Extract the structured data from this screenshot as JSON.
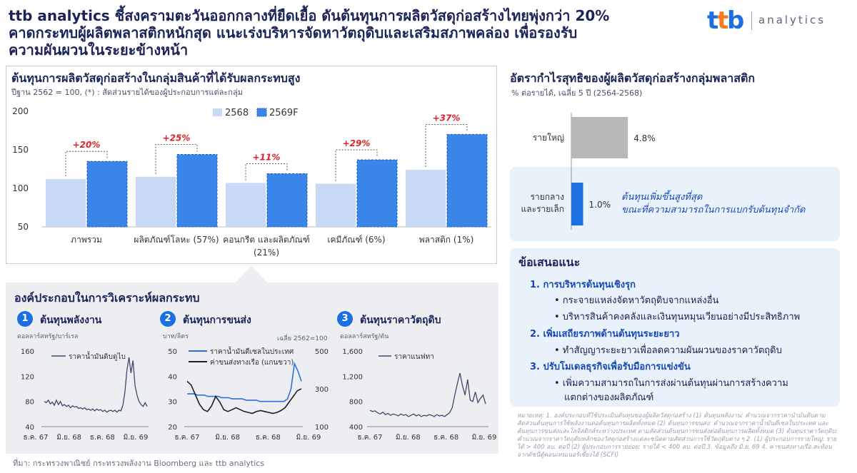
{
  "header": {
    "line1": "ttb analytics ชี้สงครามตะวันออกกลางที่ยืดเยื้อ ดันต้นทุนการผลิตวัสดุก่อสร้างไทยพุ่งกว่า 20%",
    "line2": "คาดกระทบผู้ผลิตพลาสติกหนักสุด แนะเร่งบริหารจัดหาวัตถุดิบและเสริมสภาพคล่อง เพื่อรองรับ",
    "line3": "ความผันผวนในระยะข้างหน้า"
  },
  "logo": {
    "brand": "ttb",
    "text": "analytics"
  },
  "colors": {
    "bar2568": "#c8d9f6",
    "bar2569": "#3a86e8",
    "accent": "#1b6fe0",
    "red": "#e0202a",
    "gray": "#b8b8b8"
  },
  "cost_chart": {
    "title": "ต้นทุนการผลิตวัสดุก่อสร้างในกลุ่มสินค้าที่ได้รับผลกระทบสูง",
    "subtitle": "ปีฐาน 2562 = 100, (*) : สัดส่วนรายได้ของผู้ประกอบการแต่ละกลุ่ม",
    "legend": [
      "2568",
      "2569F"
    ]
  },
  "profit_chart": {
    "title": "อัตรากำไรสุทธิของผู้ผลิตวัสดุก่อสร้างกลุ่มพลาสติก",
    "subtitle": "% ต่อรายได้, เฉลี่ย 5 ปี (2564-2568)",
    "label_large": "รายใหญ่",
    "label_small_1": "รายกลาง",
    "label_small_2": "และรายเล็ก",
    "callout_1": "ต้นทุนเพิ่มขึ้นสูงที่สุด",
    "callout_2": "ขณะที่ความสามารถในการแบกรับต้นทุนจำกัด"
  },
  "components": {
    "title": "องค์ประกอบในการวิเคราะห์ผลกระทบ",
    "c1": {
      "num": "1",
      "title": "ต้นทุนพลังงาน",
      "unit": "ดอลลาร์สหรัฐ/บาร์เรล",
      "legend": "ราคาน้ำมันดิบดูไบ"
    },
    "c2": {
      "num": "2",
      "title": "ต้นทุนการขนส่ง",
      "unit": "บาท/ลิตร",
      "unit_right": "เฉลี่ย 2562=100",
      "legend_1": "ราคาน้ำมันดีเซลในประเทศ",
      "legend_2": "ค่าขนส่งทางเรือ (แกนขวา)"
    },
    "c3": {
      "num": "3",
      "title": "ต้นทุนราคาวัตถุดิบ",
      "unit": "ดอลลาร์สหรัฐ/ตัน",
      "legend": "ราคาแนฟทา"
    }
  },
  "recommendations": {
    "title": "ข้อเสนอแนะ",
    "h1": "1.  การบริหารต้นทุนเชิงรุก",
    "b1a": "•  กระจายแหล่งจัดหาวัตถุดิบจากแหล่งอื่น",
    "b1b": "•  บริหารสินค้าคงคลังและเงินทุนหมุนเวียนอย่างมีประสิทธิภาพ",
    "h2": "2.  เพิ่มเสถียรภาพด้านต้นทุนระยะยาว",
    "b2a": "•  ทำสัญญาระยะยาวเพื่อลดความผันผวนของราคาวัตถุดิบ",
    "h3": "3.  ปรับโมเดลธุรกิจเพื่อรับมือการแข่งขัน",
    "b3a": "•  เพิ่มความสามารถในการส่งผ่านต้นทุนผ่านการสร้างความ",
    "b3b": "แตกต่างของผลิตภัณฑ์"
  },
  "footnote": "หมายเหตุ: 1. องค์ประกอบที่ใช้ประเมินต้นทุนของผู้ผลิตวัสดุก่อสร้าง (1) ต้นทุนพลังงาน: คำนวณจากราคาน้ำมันดิบตามสัดส่วนต้นทุนการใช้พลังงานต่อต้นทุนการผลิตทั้งหมด (2) ต้นทุนการขนส่ง: คำนวณจากราคาน้ำมันดีเซลในประเทศ และต้นทุนการขนส่งและโลจิสติกส์ระหว่างประเทศ ตามสัดส่วนต้นทุนการขนส่งต่อต้นทุนการผลิตทั้งหมด (3) ต้นทุนราคาวัตถุดิบ: คำนวณจากราคาวัตถุดิบหลักของวัสดุก่อสร้างแต่ละชนิดตามสัดส่วนการใช้วัตถุดิบต่าง ๆ 2. (1) ผู้ประกอบการรายใหญ่: รายได้ > 400 ลบ. ต่อปี (2) ผู้ประกอบการรายย่อย: รายได้ < 400 ลบ. ต่อปี 3. ข้อมูลถึง มิ.ย. 69 4. ค่าขนส่งทางเรือ สะท้อนจากดัชนีตู้คอนเทนเนอร์เซี่ยงไฮ้ (SCFI)",
  "source": "ที่มา: กระทรวงพาณิชย์ กระทรวงพลังงาน Bloomberg และ ttb analytics",
  "chart_data": [
    {
      "type": "bar",
      "title": "ต้นทุนการผลิตวัสดุก่อสร้างในกลุ่มสินค้าที่ได้รับผลกระทบสูง",
      "categories": [
        "ภาพรวม",
        "ผลิตภัณฑ์โลหะ (57%)",
        "คอนกรีต และผลิตภัณฑ์",
        "เคมีภัณฑ์ (6%)",
        "พลาสติก (1%)"
      ],
      "category_line2": [
        "",
        "",
        "(21%)",
        "",
        ""
      ],
      "series": [
        {
          "name": "2568",
          "values": [
            112,
            115,
            107,
            106,
            124
          ]
        },
        {
          "name": "2569F",
          "values": [
            135,
            144,
            119,
            137,
            170
          ]
        }
      ],
      "changes": [
        "+20%",
        "+25%",
        "+11%",
        "+29%",
        "+37%"
      ],
      "ylim": [
        50,
        200
      ],
      "yticks": [
        "50",
        "100",
        "150",
        "200"
      ]
    },
    {
      "type": "bar",
      "title": "อัตรากำไรสุทธิของผู้ผลิตวัสดุก่อสร้างกลุ่มพลาสติก",
      "categories": [
        "รายใหญ่",
        "รายกลาง และรายเล็ก"
      ],
      "values": [
        4.8,
        1.0
      ],
      "value_labels": [
        "4.8%",
        "1.0%"
      ],
      "xlim": [
        0,
        6
      ]
    },
    {
      "type": "line",
      "title": "ต้นทุนพลังงาน",
      "ylabel": "ดอลลาร์สหรัฐ/บาร์เรล",
      "series": [
        {
          "name": "ราคาน้ำมันดิบดูไบ",
          "values": [
            80,
            78,
            82,
            76,
            79,
            74,
            82,
            75,
            80,
            73,
            75,
            72,
            74,
            70,
            73,
            71,
            72,
            69,
            70,
            68,
            70,
            67,
            68,
            66,
            68,
            65,
            68,
            66,
            67,
            64,
            66,
            63,
            65,
            66,
            64,
            66,
            63,
            66,
            65,
            74,
            95,
            130,
            150,
            125,
            145,
            105,
            90,
            80,
            75,
            72,
            78,
            72
          ]
        }
      ],
      "xticks": [
        "ธ.ค. 67",
        "มิ.ย. 68",
        "ธ.ค. 68",
        "มิ.ย. 69"
      ],
      "yticks": [
        "40",
        "80",
        "120",
        "160"
      ],
      "ylim": [
        40,
        160
      ]
    },
    {
      "type": "line",
      "title": "ต้นทุนการขนส่ง",
      "ylabel": "บาท/ลิตร",
      "ylabel_right": "เฉลี่ย 2562=100",
      "series": [
        {
          "name": "ราคาน้ำมันดีเซลในประเทศ",
          "values": [
            33,
            33,
            33,
            32.5,
            32.5,
            32.5,
            32,
            32,
            32,
            32,
            31.5,
            31.5,
            31.5,
            31,
            31,
            31,
            31,
            30.5,
            30.5,
            30.5,
            30.5,
            30,
            30,
            30,
            30,
            30,
            30,
            30,
            30,
            31,
            35,
            45,
            42,
            38
          ],
          "axis": "left"
        },
        {
          "name": "ค่าขนส่งทางเรือ (แกนขวา)",
          "values": [
            340,
            320,
            270,
            220,
            190,
            180,
            210,
            260,
            230,
            190,
            180,
            190,
            200,
            190,
            180,
            175,
            170,
            180,
            185,
            180,
            175,
            170,
            175,
            185,
            200,
            230,
            260,
            290,
            300
          ],
          "axis": "right"
        }
      ],
      "xticks": [
        "ธ.ค. 67",
        "มิ.ย. 68",
        "ธ.ค. 68",
        "มิ.ย. 69"
      ],
      "yticks": [
        "20",
        "30",
        "40",
        "50"
      ],
      "yticks_right": [
        "100",
        "300",
        "500"
      ],
      "ylim": [
        20,
        50
      ],
      "ylim_right": [
        100,
        500
      ]
    },
    {
      "type": "line",
      "title": "ต้นทุนราคาวัตถุดิบ",
      "ylabel": "ดอลลาร์สหรัฐ/ตัน",
      "series": [
        {
          "name": "ราคาแนฟทา",
          "values": [
            660,
            640,
            650,
            620,
            600,
            630,
            590,
            610,
            580,
            600,
            590,
            570,
            600,
            580,
            590,
            560,
            580,
            600,
            570,
            590,
            560,
            580,
            570,
            590,
            580,
            560,
            590,
            570,
            580,
            560,
            590,
            620,
            700,
            900,
            1080,
            1250,
            1050,
            900,
            1150,
            820,
            800,
            950,
            780,
            850,
            900,
            760
          ]
        }
      ],
      "xticks": [
        "ธ.ค. 67",
        "มิ.ย. 68",
        "ธ.ค. 68",
        "มิ.ย. 69"
      ],
      "yticks": [
        "400",
        "800",
        "1,200",
        "1,600"
      ],
      "ylim": [
        400,
        1600
      ]
    }
  ]
}
